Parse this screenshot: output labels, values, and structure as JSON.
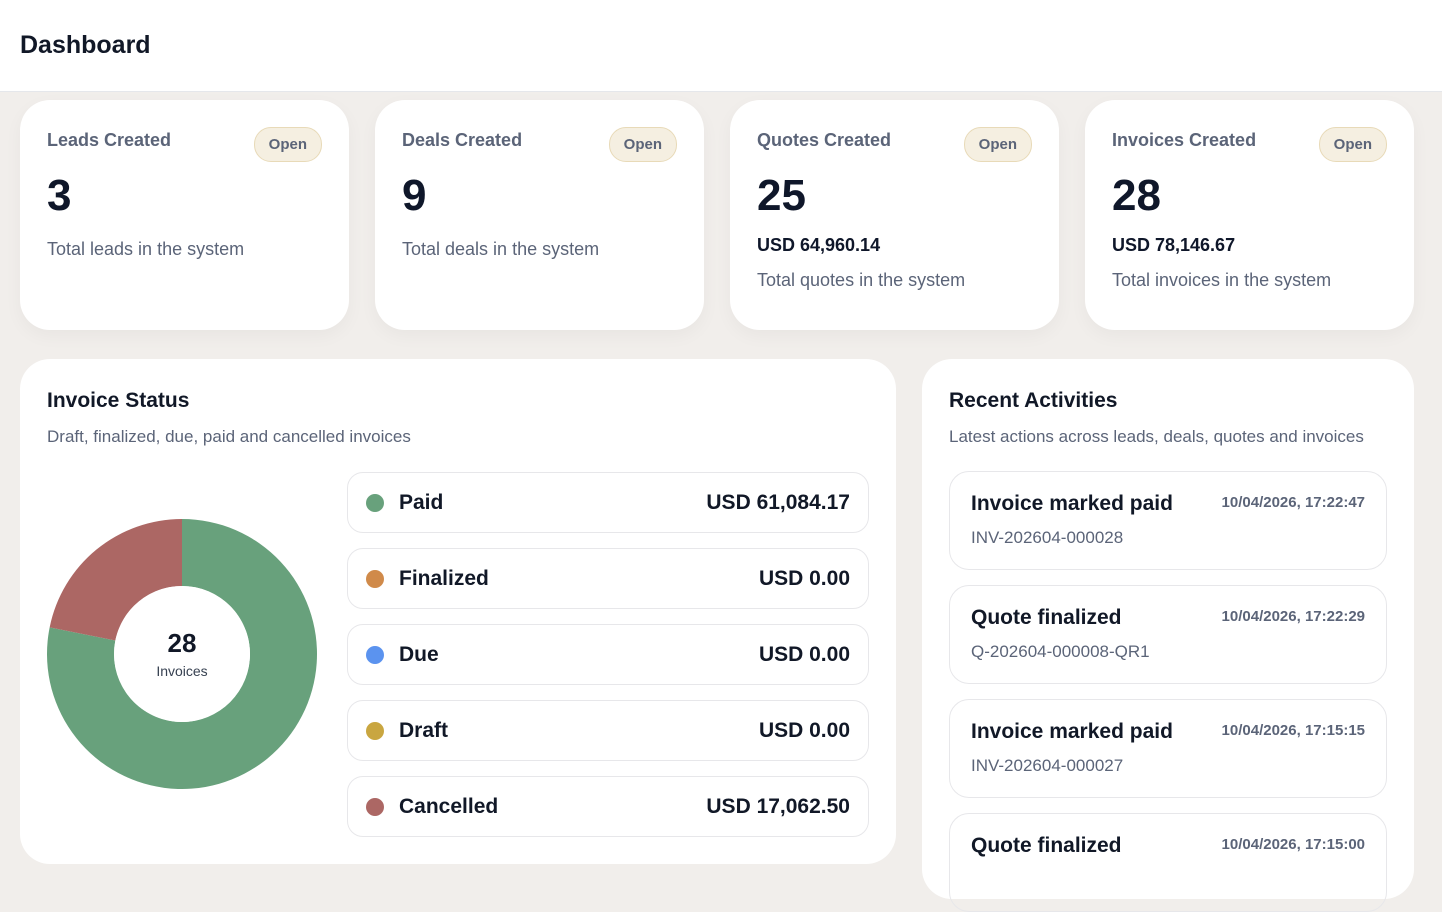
{
  "header": {
    "title": "Dashboard"
  },
  "stats": [
    {
      "title": "Leads Created",
      "badge": "Open",
      "value": "3",
      "desc": "Total leads in the system"
    },
    {
      "title": "Deals Created",
      "badge": "Open",
      "value": "9",
      "desc": "Total deals in the system"
    },
    {
      "title": "Quotes Created",
      "badge": "Open",
      "value": "25",
      "amount": "USD 64,960.14",
      "desc": "Total quotes in the system"
    },
    {
      "title": "Invoices Created",
      "badge": "Open",
      "value": "28",
      "amount": "USD 78,146.67",
      "desc": "Total invoices in the system"
    }
  ],
  "invoice_status": {
    "title": "Invoice Status",
    "subtitle": "Draft, finalized, due, paid and cancelled invoices",
    "center_value": "28",
    "center_label": "Invoices",
    "items": [
      {
        "label": "Paid",
        "amount": "USD 61,084.17",
        "value": 61084.17,
        "color": "#68a17c"
      },
      {
        "label": "Finalized",
        "amount": "USD 0.00",
        "value": 0,
        "color": "#d08a4a"
      },
      {
        "label": "Due",
        "amount": "USD 0.00",
        "value": 0,
        "color": "#5b93ef"
      },
      {
        "label": "Draft",
        "amount": "USD 0.00",
        "value": 0,
        "color": "#c9a640"
      },
      {
        "label": "Cancelled",
        "amount": "USD 17,062.50",
        "value": 17062.5,
        "color": "#ac6764"
      }
    ]
  },
  "activities": {
    "title": "Recent Activities",
    "subtitle": "Latest actions across leads, deals, quotes and invoices",
    "items": [
      {
        "title": "Invoice marked paid",
        "time": "10/04/2026, 17:22:47",
        "ref": "INV-202604-000028"
      },
      {
        "title": "Quote finalized",
        "time": "10/04/2026, 17:22:29",
        "ref": "Q-202604-000008-QR1"
      },
      {
        "title": "Invoice marked paid",
        "time": "10/04/2026, 17:15:15",
        "ref": "INV-202604-000027"
      },
      {
        "title": "Quote finalized",
        "time": "10/04/2026, 17:15:00"
      }
    ]
  }
}
